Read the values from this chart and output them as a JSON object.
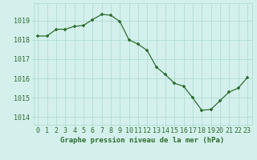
{
  "x": [
    0,
    1,
    2,
    3,
    4,
    5,
    6,
    7,
    8,
    9,
    10,
    11,
    12,
    13,
    14,
    15,
    16,
    17,
    18,
    19,
    20,
    21,
    22,
    23
  ],
  "y": [
    1018.2,
    1018.2,
    1018.55,
    1018.55,
    1018.7,
    1018.75,
    1019.05,
    1019.32,
    1019.28,
    1018.95,
    1018.0,
    1017.78,
    1017.45,
    1016.6,
    1016.2,
    1015.75,
    1015.6,
    1015.0,
    1014.35,
    1014.4,
    1014.85,
    1015.3,
    1015.5,
    1016.05
  ],
  "line_color": "#2d6e2d",
  "marker_color": "#2d6e2d",
  "bg_color": "#d4f0ec",
  "grid_color": "#a8d8d0",
  "text_color": "#2d6e2d",
  "xlabel": "Graphe pression niveau de la mer (hPa)",
  "ylim": [
    1013.6,
    1019.9
  ],
  "yticks": [
    1014,
    1015,
    1016,
    1017,
    1018,
    1019
  ],
  "xticks": [
    0,
    1,
    2,
    3,
    4,
    5,
    6,
    7,
    8,
    9,
    10,
    11,
    12,
    13,
    14,
    15,
    16,
    17,
    18,
    19,
    20,
    21,
    22,
    23
  ],
  "xlabel_fontsize": 6.5,
  "tick_fontsize": 6.0
}
